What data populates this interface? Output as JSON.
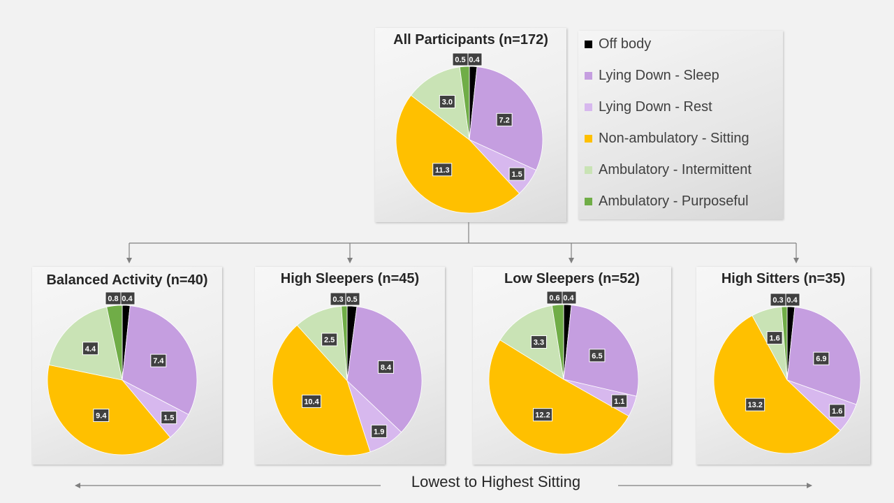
{
  "legend": [
    {
      "label": "Off body",
      "color": "#000000"
    },
    {
      "label": "Lying Down - Sleep",
      "color": "#c59ee0"
    },
    {
      "label": "Lying Down - Rest",
      "color": "#d7b8ee"
    },
    {
      "label": "Non-ambulatory - Sitting",
      "color": "#ffc000"
    },
    {
      "label": "Ambulatory - Intermittent",
      "color": "#c9e3b5"
    },
    {
      "label": "Ambulatory - Purposeful",
      "color": "#70ad47"
    }
  ],
  "arrow_caption": "Lowest to Highest Sitting",
  "chart_data": [
    {
      "type": "pie",
      "title": "All Participants (n=172)",
      "labels": [
        "Off body",
        "Lying Down - Sleep",
        "Lying Down - Rest",
        "Non-ambulatory - Sitting",
        "Ambulatory - Intermittent",
        "Ambulatory - Purposeful"
      ],
      "values": [
        0.4,
        7.2,
        1.5,
        11.3,
        3.0,
        0.5
      ],
      "value_labels": [
        "0.4",
        "7.2",
        "1.5",
        "11.3",
        "3.0",
        "0.5"
      ]
    },
    {
      "type": "pie",
      "title": "Balanced Activity (n=40)",
      "labels": [
        "Off body",
        "Lying Down - Sleep",
        "Lying Down - Rest",
        "Non-ambulatory - Sitting",
        "Ambulatory - Intermittent",
        "Ambulatory - Purposeful"
      ],
      "values": [
        0.4,
        7.4,
        1.5,
        9.4,
        4.4,
        0.8
      ],
      "value_labels": [
        "0.4",
        "7.4",
        "1.5",
        "9.4",
        "4.4",
        "0.8"
      ]
    },
    {
      "type": "pie",
      "title": "High Sleepers (n=45)",
      "labels": [
        "Off body",
        "Lying Down - Sleep",
        "Lying Down - Rest",
        "Non-ambulatory - Sitting",
        "Ambulatory - Intermittent",
        "Ambulatory - Purposeful"
      ],
      "values": [
        0.5,
        8.4,
        1.9,
        10.4,
        2.5,
        0.3
      ],
      "value_labels": [
        "0.5",
        "8.4",
        "1.9",
        "10.4",
        "2.5",
        "0.3"
      ]
    },
    {
      "type": "pie",
      "title": "Low Sleepers (n=52)",
      "labels": [
        "Off body",
        "Lying Down - Sleep",
        "Lying Down - Rest",
        "Non-ambulatory - Sitting",
        "Ambulatory - Intermittent",
        "Ambulatory - Purposeful"
      ],
      "values": [
        0.4,
        6.5,
        1.1,
        12.2,
        3.3,
        0.6
      ],
      "value_labels": [
        "0.4",
        "6.5",
        "1.1",
        "12.2",
        "3.3",
        "0.6"
      ]
    },
    {
      "type": "pie",
      "title": "High Sitters (n=35)",
      "labels": [
        "Off body",
        "Lying Down - Sleep",
        "Lying Down - Rest",
        "Non-ambulatory - Sitting",
        "Ambulatory - Intermittent",
        "Ambulatory - Purposeful"
      ],
      "values": [
        0.4,
        6.9,
        1.6,
        13.2,
        1.6,
        0.3
      ],
      "value_labels": [
        "0.4",
        "6.9",
        "1.6",
        "13.2",
        "1.6",
        "0.3"
      ]
    }
  ]
}
